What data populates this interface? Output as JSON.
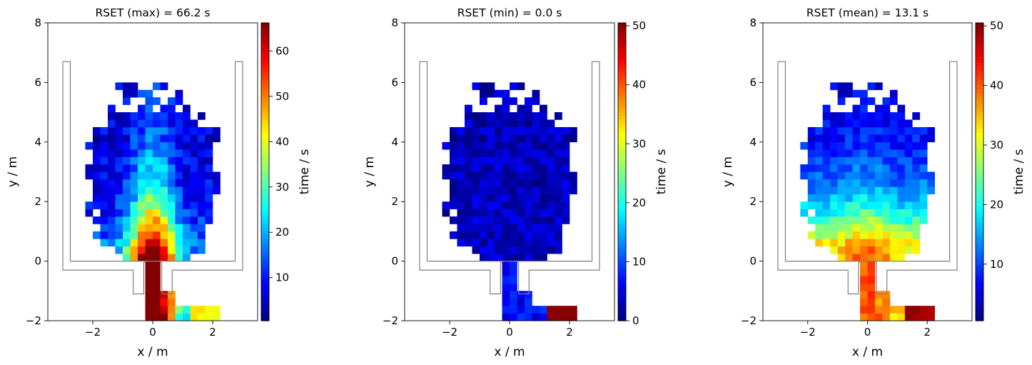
{
  "chart_data": [
    {
      "type": "heatmap",
      "title": "RSET (max) = 66.2 s",
      "xlabel": "x / m",
      "ylabel": "y / m",
      "xlim": [
        -3.5,
        3.5
      ],
      "ylim": [
        -2,
        8
      ],
      "xticks": [
        -2,
        0,
        2
      ],
      "yticks": [
        -2,
        0,
        2,
        4,
        6,
        8
      ],
      "xtick_labels": [
        "−2",
        "0",
        "2"
      ],
      "ytick_labels": [
        "−2",
        "0",
        "2",
        "4",
        "6",
        "8"
      ],
      "colorbar": {
        "label": "time / s",
        "range": [
          0.5,
          66.2
        ],
        "ticks": [
          10,
          20,
          30,
          40,
          50,
          60
        ],
        "tick_labels": [
          "10",
          "20",
          "30",
          "40",
          "50",
          "60"
        ],
        "colormap": "jet"
      },
      "stat": "max",
      "value_range": [
        0.5,
        66.2
      ]
    },
    {
      "type": "heatmap",
      "title": "RSET (min) = 0.0 s",
      "xlabel": "x / m",
      "ylabel": "y / m",
      "xlim": [
        -3.5,
        3.5
      ],
      "ylim": [
        -2,
        8
      ],
      "xticks": [
        -2,
        0,
        2
      ],
      "yticks": [
        -2,
        0,
        2,
        4,
        6,
        8
      ],
      "xtick_labels": [
        "−2",
        "0",
        "2"
      ],
      "ytick_labels": [
        "−2",
        "0",
        "2",
        "4",
        "6",
        "8"
      ],
      "colorbar": {
        "label": "time / s",
        "range": [
          0,
          50.5
        ],
        "ticks": [
          0,
          10,
          20,
          30,
          40,
          50
        ],
        "tick_labels": [
          "0",
          "10",
          "20",
          "30",
          "40",
          "50"
        ],
        "colormap": "jet"
      },
      "stat": "min",
      "value_range": [
        0,
        50.5
      ]
    },
    {
      "type": "heatmap",
      "title": "RSET (mean) = 13.1 s",
      "xlabel": "x / m",
      "ylabel": "y / m",
      "xlim": [
        -3.5,
        3.5
      ],
      "ylim": [
        -2,
        8
      ],
      "xticks": [
        -2,
        0,
        2
      ],
      "yticks": [
        -2,
        0,
        2,
        4,
        6,
        8
      ],
      "xtick_labels": [
        "−2",
        "0",
        "2"
      ],
      "ytick_labels": [
        "−2",
        "0",
        "2",
        "4",
        "6",
        "8"
      ],
      "colorbar": {
        "label": "time / s",
        "range": [
          0.5,
          50.5
        ],
        "ticks": [
          10,
          20,
          30,
          40,
          50
        ],
        "tick_labels": [
          "10",
          "20",
          "30",
          "40",
          "50"
        ],
        "colormap": "jet"
      },
      "stat": "mean",
      "value_range": [
        0.5,
        50.5
      ]
    }
  ],
  "colors": {
    "geometry_outline": "#7f7f7f",
    "axes": "#000000",
    "background": "#ffffff"
  }
}
